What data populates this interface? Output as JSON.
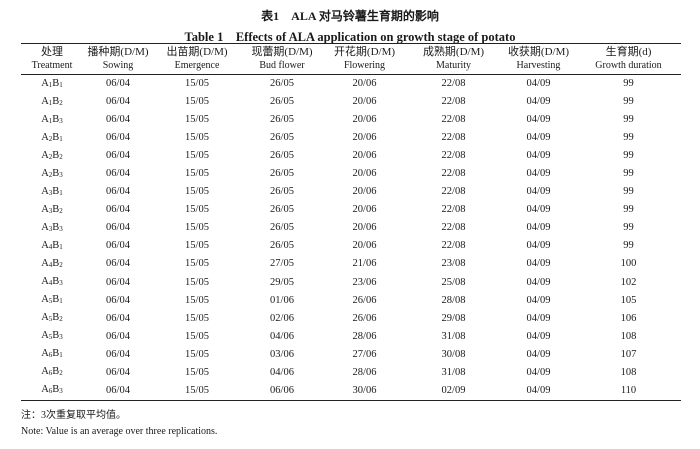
{
  "title_cn": "表1　ALA 对马铃薯生育期的影响",
  "title_en": "Table 1　Effects of ALA application on growth stage of potato",
  "headers": [
    {
      "cn": "处理",
      "en": "Treatment"
    },
    {
      "cn": "播种期(D/M)",
      "en": "Sowing"
    },
    {
      "cn": "出苗期(D/M)",
      "en": "Emergence"
    },
    {
      "cn": "现蕾期(D/M)",
      "en": "Bud flower"
    },
    {
      "cn": "开花期(D/M)",
      "en": "Flowering"
    },
    {
      "cn": "成熟期(D/M)",
      "en": "Maturity"
    },
    {
      "cn": "收获期(D/M)",
      "en": "Harvesting"
    },
    {
      "cn": "生育期(d)",
      "en": "Growth duration"
    }
  ],
  "rows": [
    {
      "a": "1",
      "b": "1",
      "vals": [
        "06/04",
        "15/05",
        "26/05",
        "20/06",
        "22/08",
        "04/09",
        "99"
      ]
    },
    {
      "a": "1",
      "b": "2",
      "vals": [
        "06/04",
        "15/05",
        "26/05",
        "20/06",
        "22/08",
        "04/09",
        "99"
      ]
    },
    {
      "a": "1",
      "b": "3",
      "vals": [
        "06/04",
        "15/05",
        "26/05",
        "20/06",
        "22/08",
        "04/09",
        "99"
      ]
    },
    {
      "a": "2",
      "b": "1",
      "vals": [
        "06/04",
        "15/05",
        "26/05",
        "20/06",
        "22/08",
        "04/09",
        "99"
      ]
    },
    {
      "a": "2",
      "b": "2",
      "vals": [
        "06/04",
        "15/05",
        "26/05",
        "20/06",
        "22/08",
        "04/09",
        "99"
      ]
    },
    {
      "a": "2",
      "b": "3",
      "vals": [
        "06/04",
        "15/05",
        "26/05",
        "20/06",
        "22/08",
        "04/09",
        "99"
      ]
    },
    {
      "a": "3",
      "b": "1",
      "vals": [
        "06/04",
        "15/05",
        "26/05",
        "20/06",
        "22/08",
        "04/09",
        "99"
      ]
    },
    {
      "a": "3",
      "b": "2",
      "vals": [
        "06/04",
        "15/05",
        "26/05",
        "20/06",
        "22/08",
        "04/09",
        "99"
      ]
    },
    {
      "a": "3",
      "b": "3",
      "vals": [
        "06/04",
        "15/05",
        "26/05",
        "20/06",
        "22/08",
        "04/09",
        "99"
      ]
    },
    {
      "a": "4",
      "b": "1",
      "vals": [
        "06/04",
        "15/05",
        "26/05",
        "20/06",
        "22/08",
        "04/09",
        "99"
      ]
    },
    {
      "a": "4",
      "b": "2",
      "vals": [
        "06/04",
        "15/05",
        "27/05",
        "21/06",
        "23/08",
        "04/09",
        "100"
      ]
    },
    {
      "a": "4",
      "b": "3",
      "vals": [
        "06/04",
        "15/05",
        "29/05",
        "23/06",
        "25/08",
        "04/09",
        "102"
      ]
    },
    {
      "a": "5",
      "b": "1",
      "vals": [
        "06/04",
        "15/05",
        "01/06",
        "26/06",
        "28/08",
        "04/09",
        "105"
      ]
    },
    {
      "a": "5",
      "b": "2",
      "vals": [
        "06/04",
        "15/05",
        "02/06",
        "26/06",
        "29/08",
        "04/09",
        "106"
      ]
    },
    {
      "a": "5",
      "b": "3",
      "vals": [
        "06/04",
        "15/05",
        "04/06",
        "28/06",
        "31/08",
        "04/09",
        "108"
      ]
    },
    {
      "a": "6",
      "b": "1",
      "vals": [
        "06/04",
        "15/05",
        "03/06",
        "27/06",
        "30/08",
        "04/09",
        "107"
      ]
    },
    {
      "a": "6",
      "b": "2",
      "vals": [
        "06/04",
        "15/05",
        "04/06",
        "28/06",
        "31/08",
        "04/09",
        "108"
      ]
    },
    {
      "a": "6",
      "b": "3",
      "vals": [
        "06/04",
        "15/05",
        "06/06",
        "30/06",
        "02/09",
        "04/09",
        "110"
      ]
    }
  ],
  "note_cn": "注：3次重复取平均值。",
  "note_en": "Note: Value is an average over three replications."
}
